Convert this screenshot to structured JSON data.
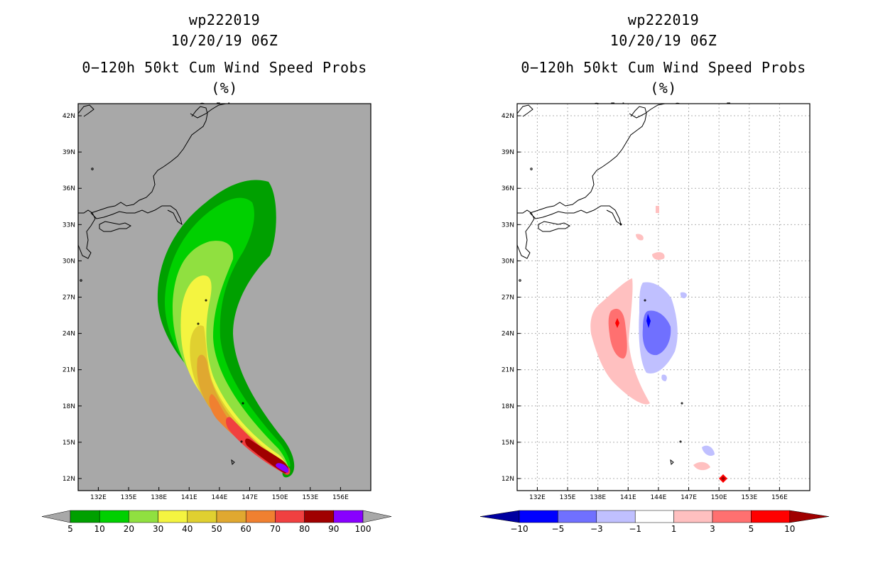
{
  "chart_data": [
    {
      "type": "heatmap",
      "storm_id": "wp222019",
      "datetime": "10/20/19 06Z",
      "title": "0-120h 50kt Cum Wind Speed Probs (%)",
      "subtitle": "Spline",
      "units": "%",
      "lon_range": [
        130,
        159
      ],
      "lat_range": [
        11,
        43
      ],
      "x_ticks": [
        "132E",
        "135E",
        "138E",
        "141E",
        "144E",
        "147E",
        "150E",
        "153E",
        "156E"
      ],
      "y_ticks": [
        "12N",
        "15N",
        "18N",
        "21N",
        "24N",
        "27N",
        "30N",
        "33N",
        "36N",
        "39N",
        "42N"
      ],
      "colorbar_levels": [
        "5",
        "10",
        "20",
        "30",
        "40",
        "50",
        "60",
        "70",
        "80",
        "90",
        "100"
      ],
      "colorbar_colors": [
        "#00a000",
        "#00d000",
        "#90e040",
        "#f4f440",
        "#e0d030",
        "#e0a830",
        "#f08030",
        "#f04040",
        "#a00000",
        "#8800ff"
      ],
      "swath_centerline": [
        [
          150.0,
          12.0
        ],
        [
          148.0,
          14.0
        ],
        [
          146.0,
          16.5
        ],
        [
          143.5,
          20.0
        ],
        [
          142.0,
          24.0
        ],
        [
          142.0,
          28.0
        ],
        [
          143.5,
          32.0
        ],
        [
          145.5,
          35.5
        ]
      ],
      "background": "#a8a8a8"
    },
    {
      "type": "heatmap",
      "storm_id": "wp222019",
      "datetime": "10/20/19 06Z",
      "title": "0-120h 50kt Cum Wind Speed Probs (%)",
      "subtitle": "Spline - Control",
      "units": "%",
      "lon_range": [
        130,
        159
      ],
      "lat_range": [
        11,
        43
      ],
      "x_ticks": [
        "132E",
        "135E",
        "138E",
        "141E",
        "144E",
        "147E",
        "150E",
        "153E",
        "156E"
      ],
      "y_ticks": [
        "12N",
        "15N",
        "18N",
        "21N",
        "24N",
        "27N",
        "30N",
        "33N",
        "36N",
        "39N",
        "42N"
      ],
      "colorbar_levels": [
        "−10",
        "−5",
        "−3",
        "−1",
        "1",
        "3",
        "5",
        "10"
      ],
      "colorbar_colors": [
        "#0000a0",
        "#0000ff",
        "#7070ff",
        "#c0c0ff",
        "#ffffff",
        "#ffc0c0",
        "#ff7070",
        "#ff0000",
        "#a00000"
      ],
      "positive_max_near": [
        150.0,
        12.0
      ],
      "dipole": {
        "positive_center": [
          139.5,
          24.5
        ],
        "negative_center": [
          143.5,
          24.5
        ]
      }
    }
  ],
  "left_title": {
    "line1": "wp222019",
    "line2": "10/20/19 06Z",
    "line3": "0−120h 50kt Cum Wind Speed Probs (%)",
    "line4": "Spline"
  },
  "right_title": {
    "line1": "wp222019",
    "line2": "10/20/19 06Z",
    "line3": "0−120h 50kt Cum Wind Speed Probs (%)",
    "line4": "Spline − Control"
  }
}
